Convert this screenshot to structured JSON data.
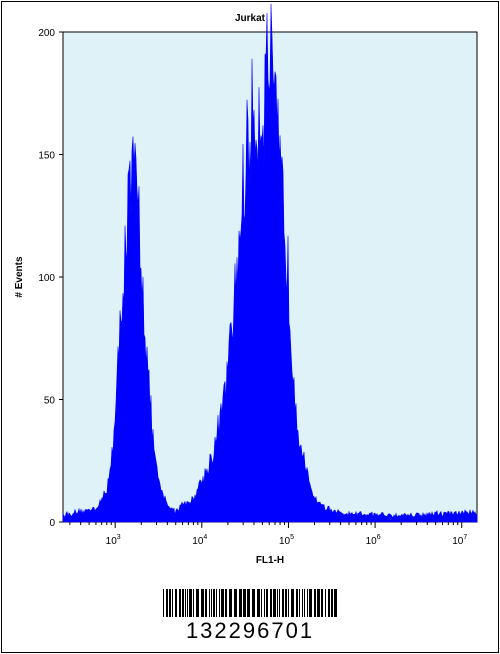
{
  "chart_data": {
    "type": "area",
    "title": "Jurkat",
    "xlabel": "FL1-H",
    "ylabel": "# Events",
    "x_scale": "log",
    "xlim": [
      250,
      15000000
    ],
    "ylim": [
      0,
      200
    ],
    "y_ticks": [
      "0",
      "50",
      "100",
      "150",
      "200"
    ],
    "x_ticks": [
      {
        "value": 1000,
        "base": "10",
        "exp": "3"
      },
      {
        "value": 10000,
        "base": "10",
        "exp": "4"
      },
      {
        "value": 100000,
        "base": "10",
        "exp": "5"
      },
      {
        "value": 1000000,
        "base": "10",
        "exp": "6"
      },
      {
        "value": 10000000,
        "base": "10",
        "exp": "7"
      }
    ],
    "grid": false,
    "plot_background": "#dff2f8",
    "fill_color": "#0000ff",
    "series": [
      {
        "x": [
          250,
          400,
          600,
          800,
          1000,
          1200,
          1400,
          1600,
          1800,
          2000,
          2300,
          2700,
          3200,
          4000,
          5000,
          6000,
          7500,
          9000,
          11000,
          14000,
          18000,
          22000,
          27000,
          32000,
          38000,
          45000,
          52000,
          60000,
          70000,
          80000,
          95000,
          110000,
          130000,
          160000,
          200000,
          260000,
          350000,
          500000,
          1000000,
          3000000,
          15000000
        ],
        "y": [
          3,
          4,
          6,
          12,
          40,
          95,
          125,
          140,
          135,
          110,
          70,
          35,
          15,
          7,
          4,
          8,
          8,
          14,
          20,
          30,
          50,
          75,
          115,
          148,
          163,
          168,
          172,
          192,
          162,
          142,
          113,
          70,
          38,
          20,
          10,
          6,
          4,
          3,
          3,
          3,
          4
        ]
      }
    ]
  },
  "barcode": {
    "number": "132296701"
  }
}
